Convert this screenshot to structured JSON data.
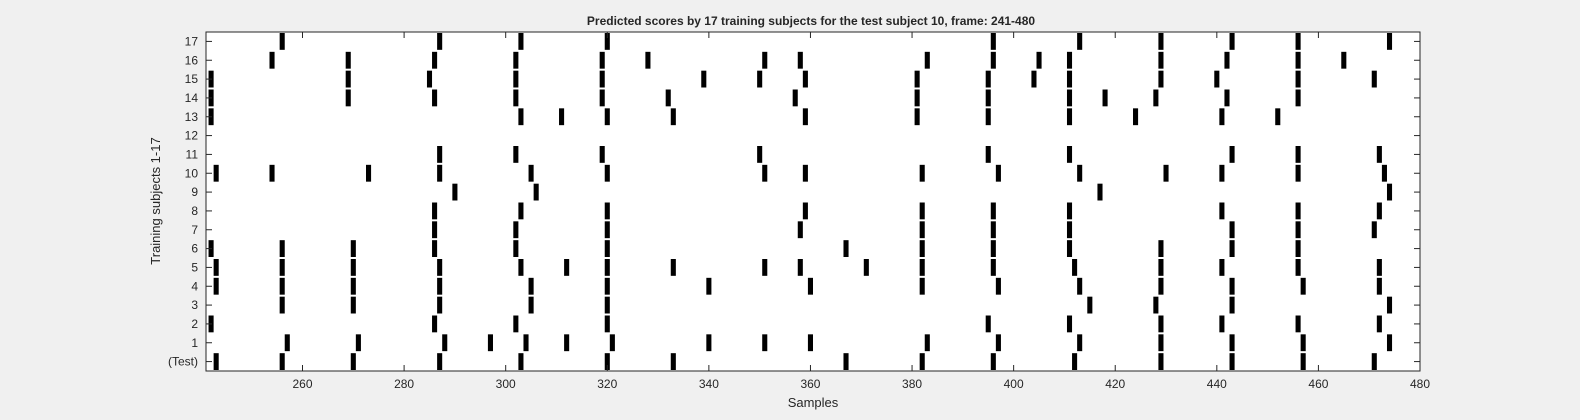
{
  "chart_data": {
    "type": "heatmap",
    "title": "Predicted scores by 17 training subjects for the test subject 10, frame: 241-480",
    "xlabel": "Samples",
    "ylabel": "Training subjects 1-17",
    "xlim": [
      241,
      480
    ],
    "x_ticks": [
      260,
      280,
      300,
      320,
      340,
      360,
      380,
      400,
      420,
      440,
      460,
      480
    ],
    "y_categories": [
      "(Test)",
      "1",
      "2",
      "3",
      "4",
      "5",
      "6",
      "7",
      "8",
      "9",
      "10",
      "11",
      "12",
      "13",
      "14",
      "15",
      "16",
      "17"
    ],
    "grid": false,
    "legend": "none",
    "colors": {
      "background": "#f0f0f0",
      "plot_area": "#ffffff",
      "mark": "#000000",
      "axis": "#262626"
    },
    "rows": [
      {
        "label": "(Test)",
        "events": [
          243,
          256,
          270,
          287,
          303,
          320,
          333,
          367,
          382,
          396,
          412,
          429,
          443,
          457,
          471
        ]
      },
      {
        "label": "1",
        "events": [
          257,
          271,
          288,
          297,
          304,
          312,
          321,
          340,
          351,
          360,
          383,
          397,
          413,
          429,
          443,
          457,
          474
        ]
      },
      {
        "label": "2",
        "events": [
          242,
          286,
          302,
          320,
          395,
          411,
          429,
          441,
          456,
          472
        ]
      },
      {
        "label": "3",
        "events": [
          256,
          270,
          287,
          305,
          320,
          415,
          428,
          443,
          474
        ]
      },
      {
        "label": "4",
        "events": [
          243,
          256,
          270,
          287,
          305,
          320,
          340,
          360,
          382,
          397,
          413,
          429,
          443,
          457,
          472
        ]
      },
      {
        "label": "5",
        "events": [
          243,
          256,
          270,
          287,
          303,
          312,
          320,
          333,
          351,
          358,
          371,
          382,
          396,
          412,
          429,
          441,
          456,
          472
        ]
      },
      {
        "label": "6",
        "events": [
          242,
          256,
          270,
          286,
          302,
          320,
          367,
          382,
          396,
          411,
          429,
          443,
          456
        ]
      },
      {
        "label": "7",
        "events": [
          286,
          302,
          320,
          358,
          382,
          396,
          411,
          443,
          456,
          471
        ]
      },
      {
        "label": "8",
        "events": [
          286,
          303,
          320,
          359,
          382,
          396,
          411,
          441,
          456,
          472
        ]
      },
      {
        "label": "9",
        "events": [
          290,
          306,
          417,
          474
        ]
      },
      {
        "label": "10",
        "events": [
          243,
          254,
          273,
          287,
          305,
          320,
          351,
          359,
          382,
          397,
          413,
          430,
          441,
          456,
          473
        ]
      },
      {
        "label": "11",
        "events": [
          287,
          302,
          319,
          350,
          395,
          411,
          443,
          456,
          472
        ]
      },
      {
        "label": "12",
        "events": []
      },
      {
        "label": "13",
        "events": [
          242,
          303,
          311,
          320,
          333,
          359,
          381,
          395,
          411,
          424,
          441,
          452
        ]
      },
      {
        "label": "14",
        "events": [
          242,
          269,
          286,
          302,
          319,
          332,
          357,
          381,
          395,
          411,
          418,
          428,
          442,
          456
        ]
      },
      {
        "label": "15",
        "events": [
          242,
          269,
          285,
          302,
          319,
          339,
          350,
          359,
          381,
          395,
          404,
          411,
          429,
          440,
          456,
          471
        ]
      },
      {
        "label": "16",
        "events": [
          254,
          269,
          286,
          302,
          319,
          328,
          351,
          358,
          383,
          396,
          405,
          411,
          429,
          442,
          456,
          465
        ]
      },
      {
        "label": "17",
        "events": [
          256,
          287,
          303,
          320,
          396,
          413,
          429,
          443,
          456,
          474
        ]
      }
    ]
  }
}
